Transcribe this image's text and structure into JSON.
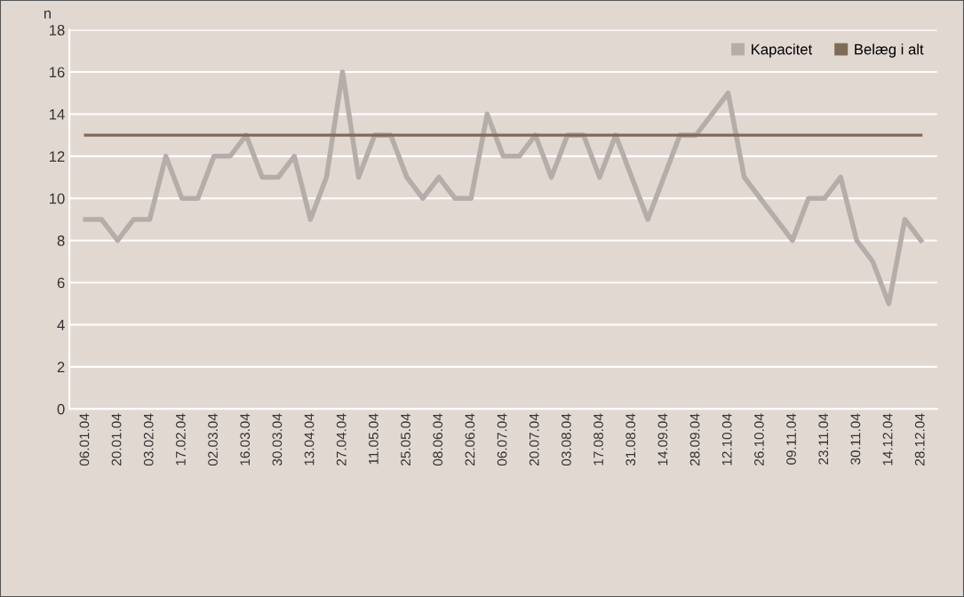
{
  "chart_data": {
    "type": "line",
    "ylabel": "n",
    "categories": [
      "06.01.04",
      null,
      "20.01.04",
      null,
      "03.02.04",
      null,
      "17.02.04",
      null,
      "02.03.04",
      null,
      "16.03.04",
      null,
      "30.03.04",
      null,
      "13.04.04",
      null,
      "27.04.04",
      null,
      "11.05.04",
      null,
      "25.05.04",
      null,
      "08.06.04",
      null,
      "22.06.04",
      null,
      "06.07.04",
      null,
      "20.07.04",
      null,
      "03.08.04",
      null,
      "17.08.04",
      null,
      "31.08.04",
      null,
      "14.09.04",
      null,
      "28.09.04",
      null,
      "12.10.04",
      null,
      "26.10.04",
      null,
      "09.11.04",
      null,
      "23.11.04",
      null,
      "30.11.04",
      null,
      "14.12.04",
      null,
      "28.12.04"
    ],
    "series": [
      {
        "name": "Kapacitet",
        "color": "#b5ada9",
        "values": [
          9,
          9,
          8,
          9,
          9,
          12,
          10,
          10,
          12,
          12,
          13,
          11,
          11,
          12,
          9,
          11,
          16,
          11,
          13,
          13,
          11,
          10,
          11,
          10,
          10,
          14,
          12,
          12,
          13,
          11,
          13,
          13,
          11,
          13,
          11,
          9,
          11,
          13,
          13,
          14,
          15,
          11,
          10,
          9,
          8,
          10,
          10,
          11,
          8,
          7,
          5,
          9,
          8
        ]
      },
      {
        "name": "Belæg i alt",
        "color": "#7d6b55",
        "values": [
          13,
          13,
          13,
          13,
          13,
          13,
          13,
          13,
          13,
          13,
          13,
          13,
          13,
          13,
          13,
          13,
          13,
          13,
          13,
          13,
          13,
          13,
          13,
          13,
          13,
          13,
          13,
          13,
          13,
          13,
          13,
          13,
          13,
          13,
          13,
          13,
          13,
          13,
          13,
          13,
          13,
          13,
          13,
          13,
          13,
          13,
          13,
          13,
          13,
          13,
          13,
          13,
          13
        ]
      }
    ],
    "ylim": [
      0,
      18
    ],
    "yticks": [
      0,
      2,
      4,
      6,
      8,
      10,
      12,
      14,
      16,
      18
    ],
    "grid": "y",
    "legend": "top right",
    "line_style": "solid",
    "marker": "none"
  }
}
